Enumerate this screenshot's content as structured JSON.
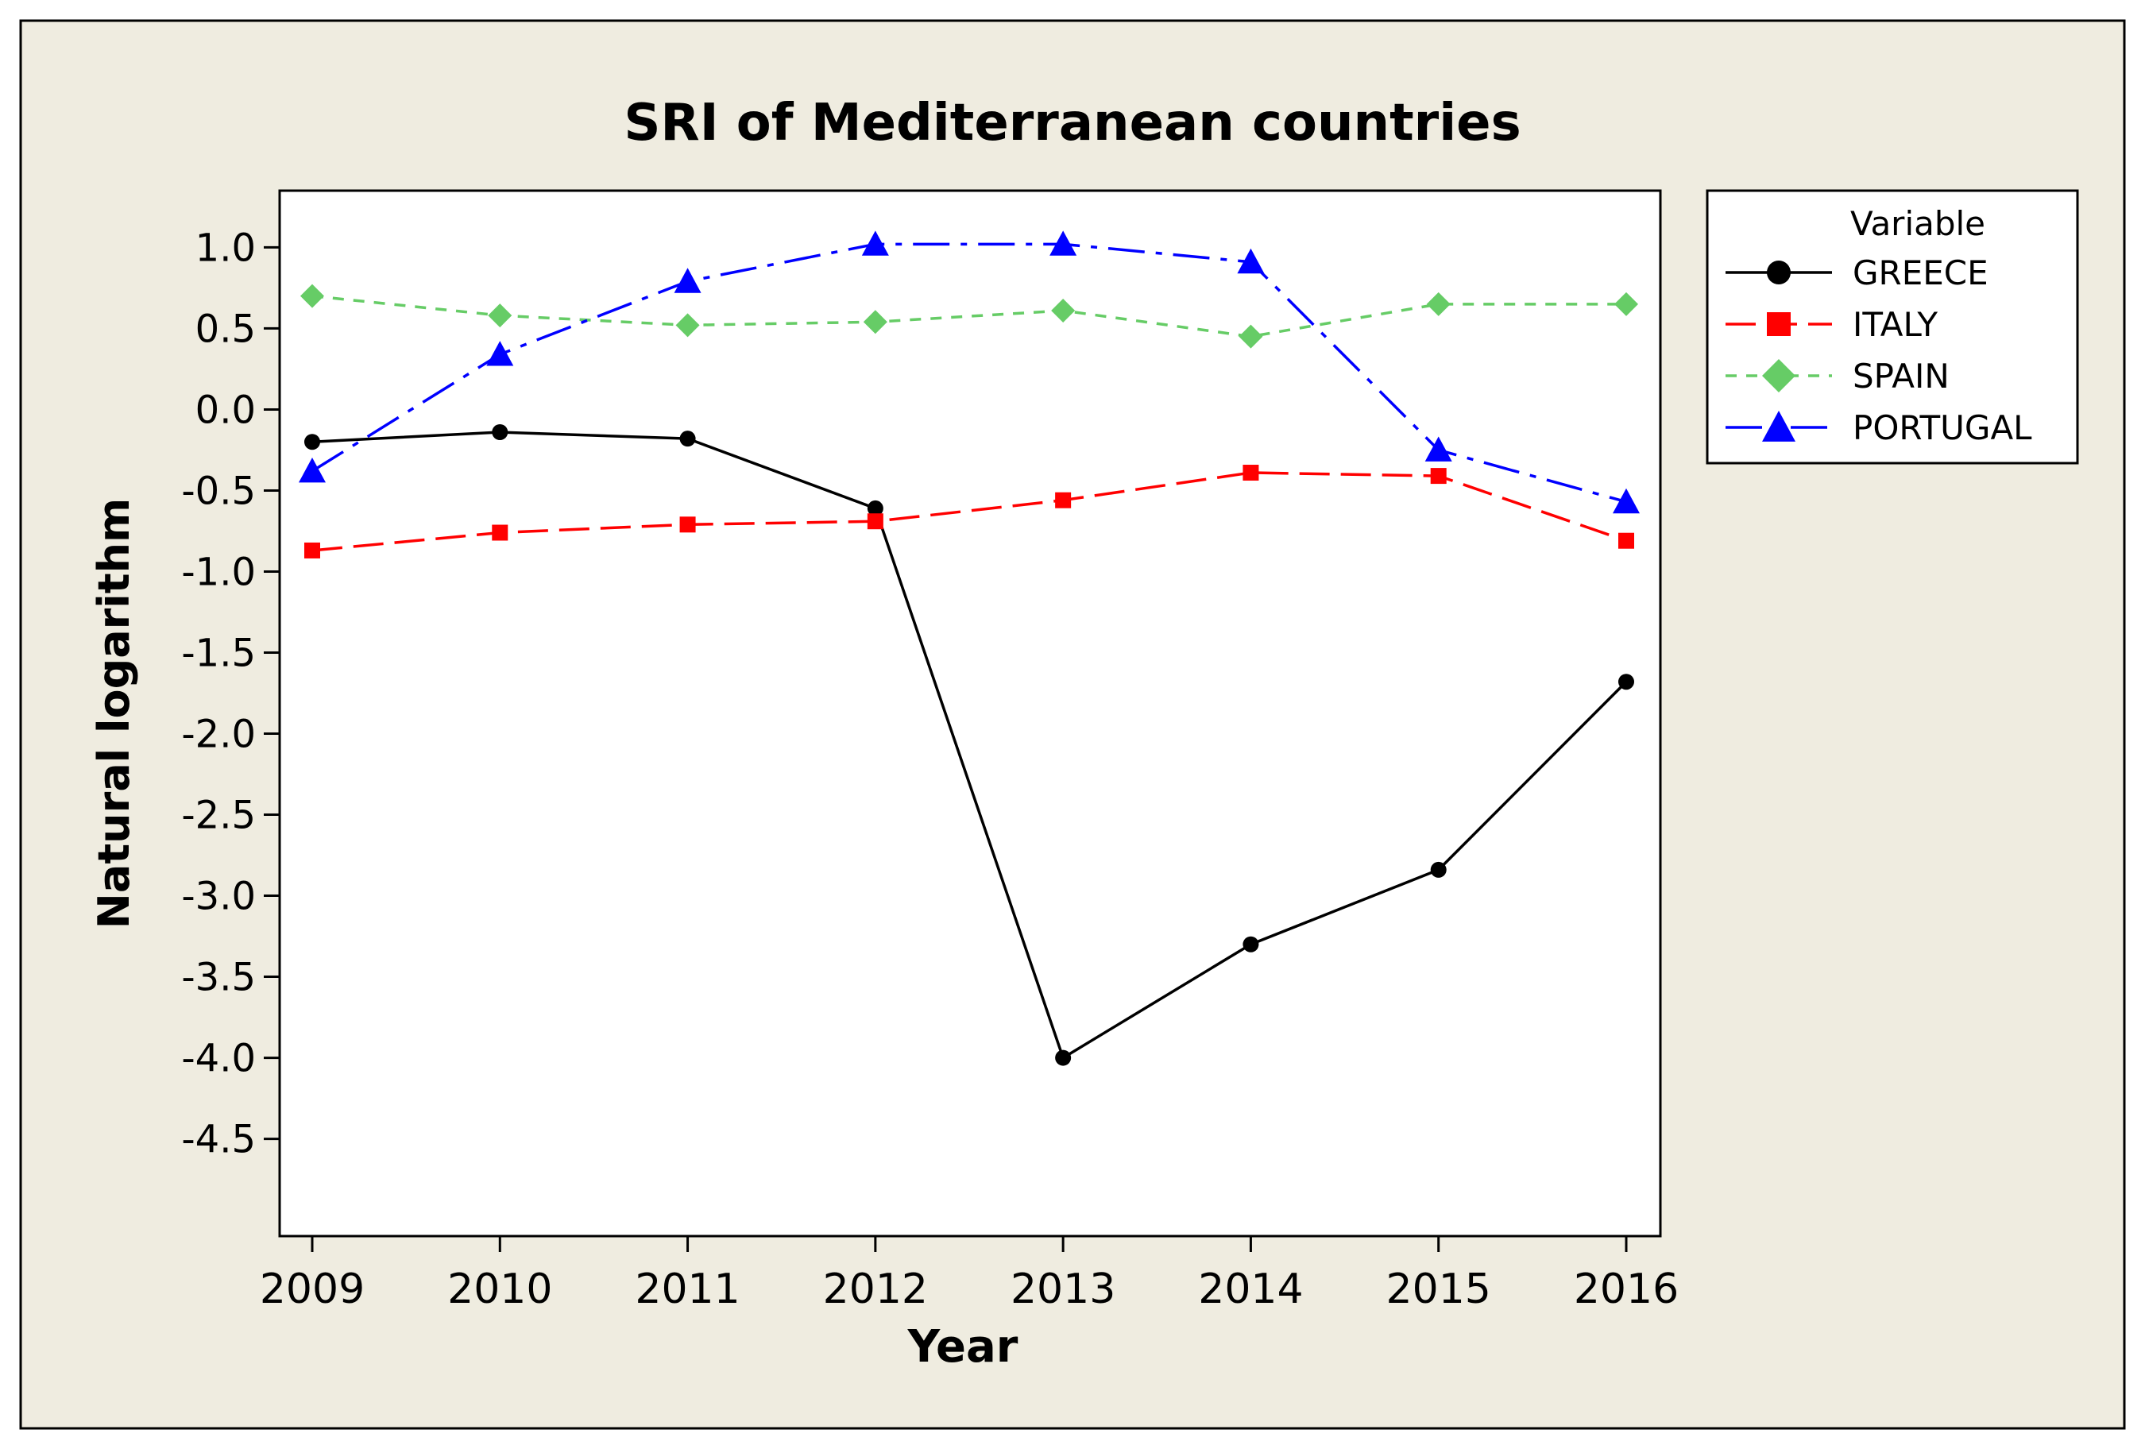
{
  "chart_data": {
    "type": "line",
    "title": "SRI of Mediterranean countries",
    "xlabel": "Year",
    "ylabel": "Natural logarithm",
    "x": [
      "2009",
      "2010",
      "2011",
      "2012",
      "2013",
      "2014",
      "2015",
      "2016"
    ],
    "ylim": [
      -5.1,
      1.35
    ],
    "yticks": [
      1.0,
      0.5,
      0.0,
      -0.5,
      -1.0,
      -1.5,
      -2.0,
      -2.5,
      -3.0,
      -3.5,
      -4.0,
      -4.5
    ],
    "ytick_labels": [
      "1.0",
      "0.5",
      "0.0",
      "-0.5",
      "-1.0",
      "-1.5",
      "-2.0",
      "-2.5",
      "-3.0",
      "-3.5",
      "-4.0",
      "-4.5"
    ],
    "legend": {
      "title": "Variable",
      "placement": "right"
    },
    "series": [
      {
        "name": "GREECE",
        "color": "#000000",
        "dash": "solid",
        "marker": "circle",
        "values": [
          -0.2,
          -0.14,
          -0.18,
          -0.61,
          -4.0,
          -3.3,
          -2.84,
          -1.68
        ]
      },
      {
        "name": "ITALY",
        "color": "#ff0000",
        "dash": "dashed",
        "marker": "square",
        "values": [
          -0.87,
          -0.76,
          -0.71,
          -0.69,
          -0.56,
          -0.39,
          -0.41,
          -0.81
        ]
      },
      {
        "name": "SPAIN",
        "color": "#66cc66",
        "dash": "dotted",
        "marker": "diamond",
        "values": [
          0.7,
          0.58,
          0.52,
          0.54,
          0.61,
          0.45,
          0.65,
          0.65
        ]
      },
      {
        "name": "PORTUGAL",
        "color": "#0000ff",
        "dash": "dashdot",
        "marker": "triangle",
        "values": [
          -0.38,
          0.34,
          0.79,
          1.02,
          1.02,
          0.91,
          -0.25,
          -0.57
        ]
      }
    ]
  }
}
